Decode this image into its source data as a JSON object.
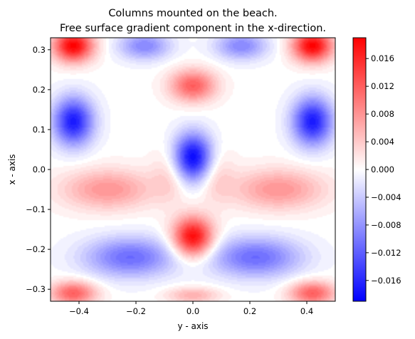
{
  "chart_data": {
    "type": "heatmap",
    "title_line1": "Columns mounted on the beach.",
    "title_line2": "Free surface gradient component in the x-direction.",
    "xlabel": "y - axis",
    "ylabel": "x - axis",
    "xlim": [
      -0.5,
      0.5
    ],
    "ylim": [
      -0.33,
      0.33
    ],
    "x_ticks": [
      -0.4,
      -0.2,
      0.0,
      0.2,
      0.4
    ],
    "x_tick_labels": [
      "−0.4",
      "−0.2",
      "0.0",
      "0.2",
      "0.4"
    ],
    "y_ticks": [
      -0.3,
      -0.2,
      -0.1,
      0.0,
      0.1,
      0.2,
      0.3
    ],
    "y_tick_labels": [
      "−0.3",
      "−0.2",
      "−0.1",
      "0.0",
      "0.1",
      "0.2",
      "0.3"
    ],
    "colormap": "bwr",
    "color_low": "#0000ff",
    "color_mid": "#ffffff",
    "color_high": "#ff0000",
    "vmin": -0.019,
    "vmax": 0.019,
    "levels": 40,
    "colorbar_ticks": [
      -0.016,
      -0.012,
      -0.008,
      -0.004,
      0.0,
      0.004,
      0.008,
      0.012,
      0.016
    ],
    "colorbar_tick_labels": [
      "−0.016",
      "−0.012",
      "−0.008",
      "−0.004",
      "0.000",
      "0.004",
      "0.008",
      "0.012",
      "0.016"
    ],
    "features": [
      {
        "y": 0.0,
        "x": 0.03,
        "value": -0.019,
        "sy": 0.07,
        "sx": 0.06
      },
      {
        "y": 0.0,
        "x": -0.17,
        "value": 0.019,
        "sy": 0.07,
        "sx": 0.05
      },
      {
        "y": 0.0,
        "x": 0.21,
        "value": 0.012,
        "sy": 0.08,
        "sx": 0.04
      },
      {
        "y": -0.42,
        "x": 0.12,
        "value": -0.017,
        "sy": 0.07,
        "sx": 0.06
      },
      {
        "y": 0.42,
        "x": 0.12,
        "value": -0.017,
        "sy": 0.07,
        "sx": 0.06
      },
      {
        "y": -0.42,
        "x": 0.31,
        "value": 0.019,
        "sy": 0.07,
        "sx": 0.04
      },
      {
        "y": 0.42,
        "x": 0.31,
        "value": 0.019,
        "sy": 0.07,
        "sx": 0.04
      },
      {
        "y": -0.17,
        "x": 0.31,
        "value": -0.009,
        "sy": 0.09,
        "sx": 0.035
      },
      {
        "y": 0.17,
        "x": 0.31,
        "value": -0.009,
        "sy": 0.09,
        "sx": 0.035
      },
      {
        "y": -0.3,
        "x": -0.05,
        "value": 0.008,
        "sy": 0.16,
        "sx": 0.05
      },
      {
        "y": 0.3,
        "x": -0.05,
        "value": 0.008,
        "sy": 0.16,
        "sx": 0.05
      },
      {
        "y": -0.22,
        "x": -0.22,
        "value": -0.011,
        "sy": 0.16,
        "sx": 0.05
      },
      {
        "y": 0.22,
        "x": -0.22,
        "value": -0.011,
        "sy": 0.16,
        "sx": 0.05
      },
      {
        "y": -0.08,
        "x": -0.01,
        "value": 0.004,
        "sy": 0.06,
        "sx": 0.07
      },
      {
        "y": 0.08,
        "x": -0.01,
        "value": 0.004,
        "sy": 0.06,
        "sx": 0.07
      },
      {
        "y": -0.42,
        "x": -0.31,
        "value": 0.012,
        "sy": 0.08,
        "sx": 0.03
      },
      {
        "y": 0.42,
        "x": -0.31,
        "value": 0.012,
        "sy": 0.08,
        "sx": 0.03
      },
      {
        "y": 0.0,
        "x": -0.315,
        "value": 0.006,
        "sy": 0.09,
        "sx": 0.02
      }
    ]
  }
}
